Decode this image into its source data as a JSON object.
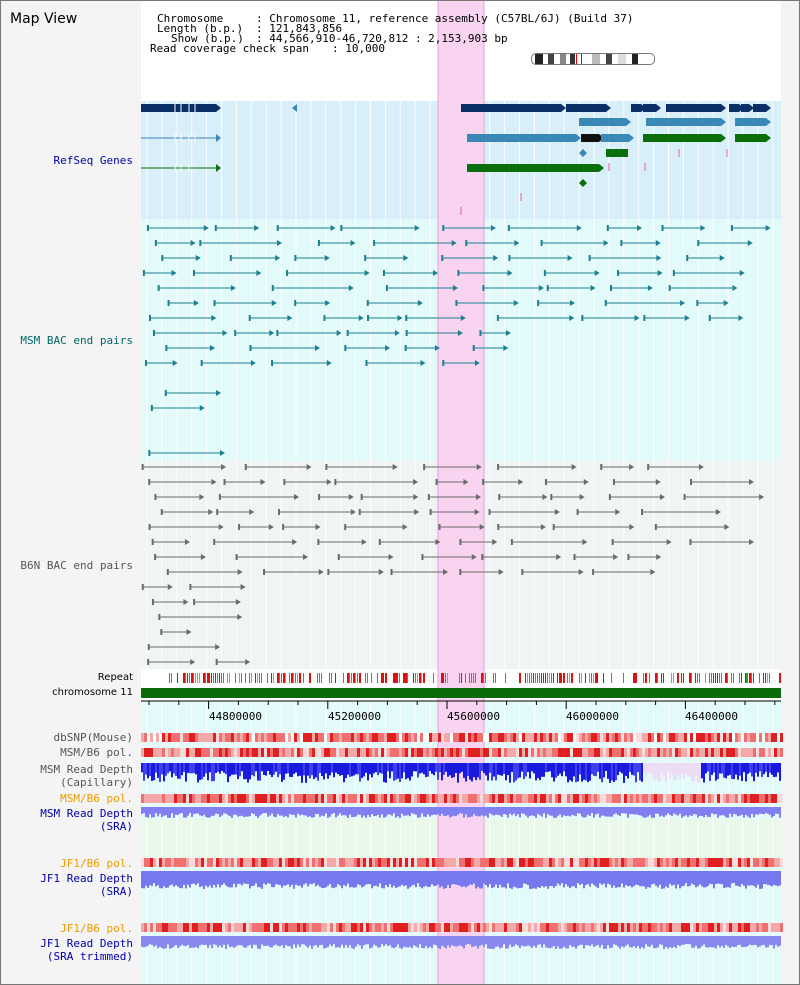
{
  "title": "Map View",
  "info": {
    "chromosome_key": "Chromosome",
    "chromosome_val": ": Chromosome 11, reference assembly (C57BL/6J) (Build 37)",
    "length_key": "Length (b.p.)",
    "length_val": ": 121,843,856",
    "show_key": "Show (b.p.)",
    "show_val": ": 44,566,910-46,720,812 : 2,153,903 bp",
    "coverage_key": "Read coverage check span",
    "coverage_val": ": 10,000"
  },
  "tracks": {
    "refseq": "RefSeq Genes",
    "msm_bac": "MSM BAC end pairs",
    "b6n_bac": "B6N BAC end pairs",
    "repeat": "Repeat",
    "chromosome": "chromosome 11",
    "dbsnp": "dbSNP(Mouse)",
    "msm_b6_pol": "MSM/B6 pol.",
    "msm_depth_cap_1": "MSM Read Depth",
    "msm_depth_cap_2": "(Capillary)",
    "msm_b6_pol_2": "MSM/B6 pol.",
    "msm_depth_sra_1": "MSM Read Depth",
    "msm_depth_sra_2": "(SRA)",
    "jf1_b6_pol": "JF1/B6 pol.",
    "jf1_depth_sra_1": "JF1 Read Depth",
    "jf1_depth_sra_2": "(SRA)",
    "jf1_b6_pol_2": "JF1/B6 pol.",
    "jf1_depth_trim_1": "JF1 Read Depth",
    "jf1_depth_trim_2": "(SRA trimmed)"
  },
  "axis": {
    "ticks": [
      "44800000",
      "45200000",
      "45600000",
      "46000000",
      "46400000"
    ]
  },
  "colors": {
    "refseq_bg": "#d8eef9",
    "bac_bg": "#e2fafa",
    "highlight": "#f8d4f0",
    "navy": "#0a2f66",
    "steel": "#3a88b8",
    "green": "#0a6e0a",
    "chrom_green": "#0b6b0b",
    "red": "#e8302a",
    "depth_blue": "#1a1ae0",
    "depth_light": "#8080f0"
  },
  "icons": {
    "arrow": "triangle-arrow",
    "chromosome_ideogram": "cytoband-ideogram"
  }
}
